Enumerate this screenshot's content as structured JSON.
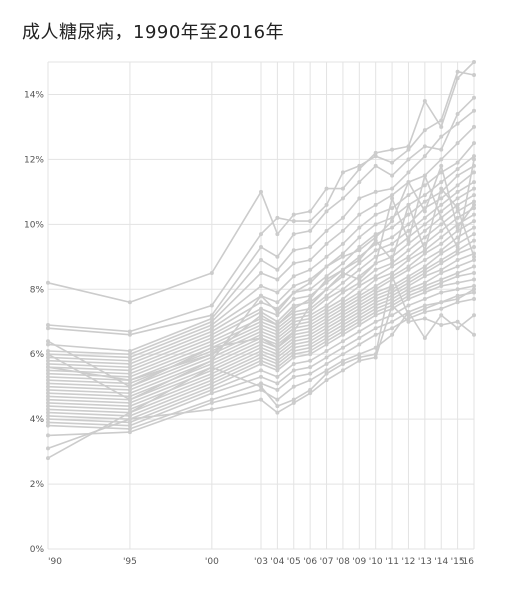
{
  "title": "成人糖尿病，1990年至2016年",
  "chart_data": {
    "type": "line",
    "title": "成人糖尿病，1990年至2016年",
    "xlabel": "",
    "ylabel": "",
    "ylim": [
      0,
      15
    ],
    "y_ticks": [
      0,
      2,
      4,
      6,
      8,
      10,
      12,
      14
    ],
    "y_tick_suffix": "%",
    "x": [
      1990,
      1995,
      2000,
      2003,
      2004,
      2005,
      2006,
      2007,
      2008,
      2009,
      2010,
      2011,
      2012,
      2013,
      2014,
      2015,
      2016
    ],
    "x_tick_labels": [
      "'90",
      "'95",
      "'00",
      "'03",
      "'04",
      "'05",
      "'06",
      "'07",
      "'08",
      "'09",
      "'10",
      "'11",
      "'12",
      "'13",
      "'14",
      "'15",
      "'16"
    ],
    "grid": true,
    "line_color": "#cccccc",
    "series": [
      {
        "values": [
          8.2,
          7.6,
          8.5,
          11.0,
          9.7,
          10.3,
          10.4,
          11.1,
          11.1,
          11.7,
          12.2,
          12.3,
          12.4,
          13.8,
          13.0,
          14.5,
          15.0
        ]
      },
      {
        "values": [
          6.9,
          6.7,
          7.5,
          9.7,
          10.2,
          10.1,
          10.1,
          10.6,
          11.6,
          11.8,
          12.1,
          11.9,
          12.3,
          12.9,
          13.2,
          14.7,
          14.6
        ]
      },
      {
        "values": [
          6.8,
          6.6,
          7.2,
          9.3,
          9.0,
          9.7,
          9.8,
          10.4,
          10.8,
          11.3,
          11.8,
          11.5,
          12.0,
          12.4,
          12.3,
          13.4,
          13.9
        ]
      },
      {
        "values": [
          6.3,
          6.1,
          7.1,
          8.9,
          8.6,
          9.2,
          9.3,
          9.8,
          10.2,
          10.8,
          11.0,
          11.1,
          11.6,
          12.1,
          12.7,
          13.1,
          13.5
        ]
      },
      {
        "values": [
          6.1,
          6.0,
          7.0,
          8.5,
          8.3,
          8.8,
          8.9,
          9.4,
          9.8,
          10.3,
          10.6,
          10.9,
          11.3,
          11.5,
          12.0,
          12.5,
          13.0
        ]
      },
      {
        "values": [
          6.0,
          5.9,
          6.9,
          8.1,
          7.9,
          8.4,
          8.6,
          9.0,
          9.4,
          9.9,
          10.3,
          10.5,
          10.9,
          11.2,
          11.6,
          11.9,
          12.5
        ]
      },
      {
        "values": [
          5.9,
          5.8,
          6.8,
          7.8,
          7.6,
          8.1,
          8.3,
          8.7,
          9.1,
          9.6,
          10.0,
          10.2,
          10.6,
          10.9,
          11.3,
          11.7,
          12.1
        ]
      },
      {
        "values": [
          5.8,
          5.7,
          6.7,
          7.6,
          7.4,
          7.9,
          8.0,
          8.4,
          8.8,
          9.3,
          9.7,
          9.9,
          10.3,
          10.7,
          11.0,
          11.5,
          11.8
        ]
      },
      {
        "values": [
          5.7,
          5.6,
          6.6,
          7.4,
          7.2,
          7.7,
          7.8,
          8.2,
          8.6,
          9.0,
          9.4,
          9.6,
          10.0,
          10.5,
          10.8,
          11.2,
          11.6
        ]
      },
      {
        "values": [
          5.6,
          5.5,
          6.5,
          7.3,
          7.0,
          7.5,
          7.6,
          8.0,
          8.4,
          8.8,
          9.2,
          9.4,
          9.8,
          10.2,
          10.6,
          11.0,
          11.3
        ]
      },
      {
        "values": [
          5.5,
          5.4,
          6.4,
          7.1,
          6.9,
          7.3,
          7.4,
          7.8,
          8.2,
          8.6,
          9.0,
          9.2,
          9.6,
          10.0,
          10.4,
          10.8,
          11.1
        ]
      },
      {
        "values": [
          5.4,
          5.3,
          6.3,
          7.0,
          6.8,
          7.2,
          7.3,
          7.7,
          8.0,
          8.4,
          8.8,
          9.0,
          9.4,
          9.8,
          10.2,
          10.6,
          10.9
        ]
      },
      {
        "values": [
          5.3,
          5.2,
          6.2,
          6.9,
          6.7,
          7.1,
          7.2,
          7.5,
          7.9,
          8.2,
          8.6,
          8.8,
          9.2,
          9.6,
          10.0,
          10.4,
          10.7
        ]
      },
      {
        "values": [
          5.2,
          5.1,
          6.1,
          6.8,
          6.6,
          7.0,
          7.1,
          7.4,
          7.7,
          8.1,
          8.4,
          8.7,
          9.0,
          9.4,
          9.8,
          10.2,
          10.5
        ]
      },
      {
        "values": [
          5.1,
          5.0,
          6.0,
          6.7,
          6.5,
          6.9,
          7.0,
          7.3,
          7.6,
          7.9,
          8.3,
          8.5,
          8.9,
          9.2,
          9.6,
          10.0,
          10.3
        ]
      },
      {
        "values": [
          5.0,
          4.9,
          5.9,
          6.6,
          6.4,
          6.8,
          6.9,
          7.2,
          7.5,
          7.8,
          8.1,
          8.4,
          8.7,
          9.1,
          9.4,
          9.8,
          10.1
        ]
      },
      {
        "values": [
          4.9,
          4.8,
          5.8,
          6.5,
          6.3,
          6.7,
          6.8,
          7.1,
          7.4,
          7.7,
          8.0,
          8.3,
          8.6,
          8.9,
          9.2,
          9.6,
          9.9
        ]
      },
      {
        "values": [
          4.8,
          4.7,
          5.7,
          6.4,
          6.2,
          6.6,
          6.7,
          7.0,
          7.3,
          7.6,
          7.9,
          8.1,
          8.4,
          8.7,
          9.1,
          9.4,
          9.7
        ]
      },
      {
        "values": [
          4.7,
          4.6,
          5.6,
          6.3,
          6.1,
          6.5,
          6.6,
          6.9,
          7.2,
          7.5,
          7.8,
          8.0,
          8.3,
          8.6,
          8.9,
          9.2,
          9.5
        ]
      },
      {
        "values": [
          4.6,
          4.5,
          5.5,
          6.2,
          6.0,
          6.4,
          6.5,
          6.8,
          7.1,
          7.4,
          7.7,
          7.9,
          8.2,
          8.5,
          8.8,
          9.1,
          9.3
        ]
      },
      {
        "values": [
          4.5,
          4.4,
          5.4,
          6.1,
          5.9,
          6.3,
          6.4,
          6.7,
          7.0,
          7.3,
          7.6,
          7.8,
          8.1,
          8.4,
          8.6,
          8.9,
          9.1
        ]
      },
      {
        "values": [
          4.4,
          4.3,
          5.3,
          6.0,
          5.8,
          6.2,
          6.3,
          6.6,
          6.9,
          7.2,
          7.5,
          7.7,
          8.0,
          8.2,
          8.5,
          8.7,
          8.9
        ]
      },
      {
        "values": [
          4.3,
          4.2,
          5.2,
          5.9,
          5.7,
          6.1,
          6.2,
          6.5,
          6.8,
          7.1,
          7.4,
          7.6,
          7.9,
          8.1,
          8.3,
          8.5,
          8.7
        ]
      },
      {
        "values": [
          4.2,
          4.1,
          5.1,
          5.8,
          5.6,
          6.0,
          6.1,
          6.4,
          6.7,
          7.0,
          7.3,
          7.5,
          7.8,
          8.0,
          8.2,
          8.4,
          8.5
        ]
      },
      {
        "values": [
          4.1,
          4.0,
          5.0,
          5.7,
          5.5,
          5.9,
          6.0,
          6.3,
          6.6,
          6.9,
          7.2,
          7.4,
          7.7,
          7.9,
          8.1,
          8.2,
          8.3
        ]
      },
      {
        "values": [
          4.0,
          3.9,
          4.9,
          5.5,
          5.3,
          5.7,
          5.8,
          6.1,
          6.4,
          6.7,
          7.0,
          7.2,
          7.5,
          7.7,
          7.9,
          8.0,
          8.1
        ]
      },
      {
        "values": [
          3.9,
          3.8,
          4.8,
          5.3,
          5.1,
          5.5,
          5.6,
          5.9,
          6.2,
          6.5,
          6.8,
          7.0,
          7.3,
          7.5,
          7.6,
          7.8,
          7.9
        ]
      },
      {
        "values": [
          3.8,
          3.7,
          4.6,
          5.1,
          4.9,
          5.3,
          5.4,
          5.7,
          6.0,
          6.3,
          6.6,
          6.8,
          7.1,
          7.3,
          7.4,
          7.6,
          7.7
        ]
      },
      {
        "values": [
          3.5,
          3.6,
          4.5,
          4.9,
          4.6,
          5.0,
          5.2,
          5.5,
          5.8,
          6.0,
          6.2,
          6.6,
          7.3,
          6.5,
          7.2,
          6.8,
          7.2
        ]
      },
      {
        "values": [
          3.1,
          4.0,
          4.3,
          4.6,
          4.2,
          4.5,
          4.8,
          5.2,
          5.5,
          5.8,
          5.9,
          7.5,
          7.0,
          7.1,
          6.9,
          7.0,
          6.6
        ]
      },
      {
        "values": [
          2.8,
          4.2,
          5.6,
          5.0,
          4.4,
          4.6,
          4.9,
          5.4,
          5.7,
          5.9,
          6.0,
          8.4,
          7.2,
          7.4,
          7.6,
          7.7,
          8.0
        ]
      },
      {
        "values": [
          6.4,
          5.0,
          6.2,
          6.5,
          6.2,
          6.7,
          7.5,
          8.0,
          8.5,
          8.3,
          8.8,
          10.8,
          9.5,
          11.5,
          10.2,
          9.3,
          12.0
        ]
      },
      {
        "values": [
          6.0,
          4.6,
          5.8,
          7.8,
          7.3,
          7.9,
          8.2,
          8.7,
          9.0,
          9.2,
          9.6,
          10.1,
          11.3,
          10.4,
          11.8,
          9.9,
          10.6
        ]
      },
      {
        "values": [
          5.6,
          5.2,
          6.0,
          7.2,
          6.9,
          7.4,
          7.7,
          8.3,
          8.6,
          8.9,
          9.5,
          8.9,
          10.6,
          9.2,
          11.1,
          10.5,
          9.0
        ]
      }
    ]
  }
}
